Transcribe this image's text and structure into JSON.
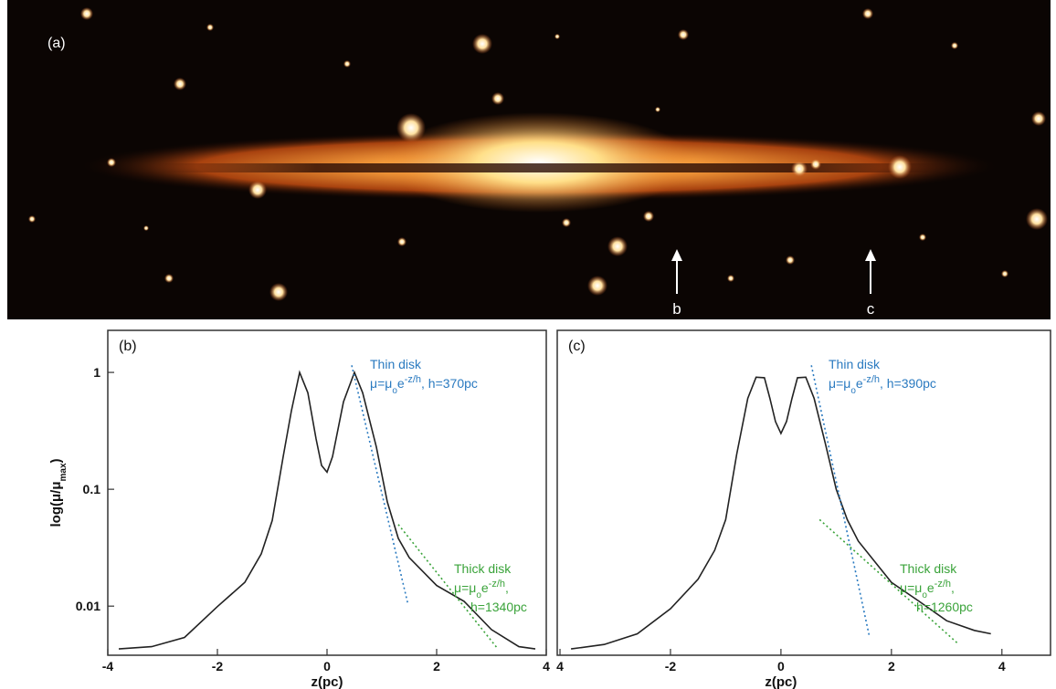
{
  "image_panel": {
    "label": "(a)",
    "arrows": [
      "b",
      "c"
    ]
  },
  "chart_data": [
    {
      "type": "line",
      "panel_label": "(b)",
      "xlabel": "z(pc)",
      "ylabel": {
        "text": "log(μ/μ",
        "sub": "max",
        "end": ")"
      },
      "xlim": [
        -4,
        4
      ],
      "xticks": [
        -4,
        -2,
        0,
        2,
        4
      ],
      "ylim": [
        0.0038,
        2.29
      ],
      "yticks": [
        0.01,
        0.1,
        1
      ],
      "log_y": true,
      "series": [
        {
          "color": "#222222",
          "style": "solid",
          "x": [
            -3.8,
            -3.2,
            -2.6,
            -2.0,
            -1.5,
            -1.2,
            -1.0,
            -0.8,
            -0.65,
            -0.5,
            -0.35,
            -0.2,
            -0.1,
            0,
            0.1,
            0.3,
            0.5,
            0.65,
            0.9,
            1.1,
            1.3,
            1.5,
            2.0,
            2.5,
            3.0,
            3.5,
            3.8
          ],
          "values": [
            0.0043,
            0.0045,
            0.0054,
            0.0099,
            0.016,
            0.028,
            0.054,
            0.19,
            0.47,
            1.0,
            0.67,
            0.27,
            0.16,
            0.14,
            0.19,
            0.56,
            1.0,
            0.67,
            0.23,
            0.078,
            0.038,
            0.026,
            0.015,
            0.011,
            0.0063,
            0.0045,
            0.0043
          ]
        },
        {
          "name": "Thin disk",
          "color": "#2a7ac0",
          "style": "dotted",
          "x": [
            0.45,
            1.47
          ],
          "values": [
            1.15,
            0.0107
          ],
          "formula": {
            "mu": "μ=μ",
            "sub": "o",
            "e": "e",
            "exp": "-z/h",
            "tail": ", h=370pc"
          }
        },
        {
          "name": "Thick disk",
          "color": "#3aa33a",
          "style": "dotted",
          "x": [
            1.3,
            3.1
          ],
          "values": [
            0.05,
            0.0044
          ],
          "formula": {
            "mu": "μ=μ",
            "sub": "o",
            "e": "e",
            "exp": "-z/h",
            "tail": ",",
            "line2": "h=1340pc"
          }
        }
      ]
    },
    {
      "type": "line",
      "panel_label": "(c)",
      "xlabel": "z(pc)",
      "xlim": [
        -4.05,
        4.88
      ],
      "xticks": [
        {
          "value": -4,
          "label": "4"
        },
        -2,
        0,
        2,
        4
      ],
      "ylim": [
        0.0038,
        2.29
      ],
      "log_y": true,
      "series": [
        {
          "color": "#222222",
          "style": "solid",
          "x": [
            -3.8,
            -3.2,
            -2.6,
            -2.0,
            -1.5,
            -1.2,
            -1.0,
            -0.8,
            -0.6,
            -0.45,
            -0.3,
            -0.2,
            -0.1,
            0,
            0.1,
            0.2,
            0.3,
            0.45,
            0.6,
            0.8,
            1.0,
            1.2,
            1.4,
            2.0,
            2.5,
            3.0,
            3.5,
            3.8
          ],
          "values": [
            0.0043,
            0.0047,
            0.0058,
            0.0095,
            0.017,
            0.03,
            0.055,
            0.2,
            0.6,
            0.91,
            0.9,
            0.6,
            0.38,
            0.3,
            0.38,
            0.6,
            0.9,
            0.91,
            0.6,
            0.25,
            0.1,
            0.055,
            0.036,
            0.016,
            0.011,
            0.0075,
            0.0062,
            0.0058
          ]
        },
        {
          "name": "Thin disk",
          "color": "#2a7ac0",
          "style": "dotted",
          "x": [
            0.55,
            1.6
          ],
          "values": [
            1.15,
            0.0055
          ],
          "formula": {
            "mu": "μ=μ",
            "sub": "o",
            "e": "e",
            "exp": "-z/h",
            "tail": ", h=390pc"
          }
        },
        {
          "name": "Thick disk",
          "color": "#3aa33a",
          "style": "dotted",
          "x": [
            0.7,
            3.2
          ],
          "values": [
            0.055,
            0.0048
          ],
          "formula": {
            "mu": "μ=μ",
            "sub": "o",
            "e": "e",
            "exp": "-z/h",
            "tail": ",",
            "line2": "h=1260pc"
          }
        }
      ]
    }
  ]
}
